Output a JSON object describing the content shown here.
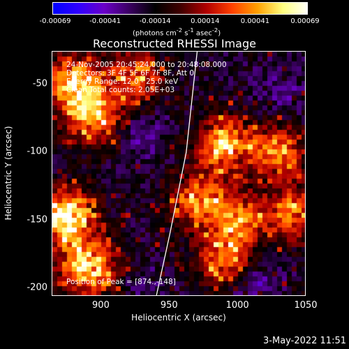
{
  "colorbar": {
    "ticks": [
      "-0.00069",
      "-0.00041",
      "-0.00014",
      "0.00014",
      "0.00041",
      "0.00069"
    ],
    "units_pre": "(photons cm",
    "units_sup1": "-2",
    "units_mid1": " s",
    "units_sup2": "-1",
    "units_mid2": " asec",
    "units_sup3": "-2",
    "units_post": ")",
    "colors": [
      "#0000ff",
      "#3000ff",
      "#6a00c8",
      "#3a0060",
      "#000000",
      "#400000",
      "#b00000",
      "#ff4000",
      "#ffa000",
      "#ffff80",
      "#ffffff"
    ]
  },
  "annotations": {
    "time_range": "24-Nov-2005 20:45:24.000 to 20:48:08.000",
    "detectors": "Detectors: 3F 4F 5F 6F 7F 8F, Att 0",
    "energy_range": "Energy Range: 12.0 - 25.0 keV",
    "clean_counts": "Clean     Total counts: 2.05E+03",
    "peak_position": "Position of Peak = [874.,-148]"
  },
  "chart_data": {
    "type": "heatmap",
    "title": "Reconstructed RHESSI Image",
    "xlabel": "Heliocentric X (arcsec)",
    "ylabel": "Heliocentric Y (arcsec)",
    "xlim": [
      864,
      1050
    ],
    "ylim": [
      -206,
      -26
    ],
    "xticks": [
      "900",
      "950",
      "1000",
      "1050"
    ],
    "yticks": [
      "-50",
      "-100",
      "-150",
      "-200"
    ],
    "xtick_values": [
      900,
      950,
      1000,
      1050
    ],
    "ytick_values": [
      -50,
      -100,
      -150,
      -200
    ],
    "clim": [
      -0.00069,
      0.00069
    ],
    "peak": [
      874,
      -148
    ],
    "bright_regions": [
      {
        "x": 880,
        "y": -50,
        "level": 0.8
      },
      {
        "x": 895,
        "y": -75,
        "level": 0.6
      },
      {
        "x": 925,
        "y": -45,
        "level": 0.5
      },
      {
        "x": 990,
        "y": -95,
        "level": 0.75
      },
      {
        "x": 1030,
        "y": -100,
        "level": 0.6
      },
      {
        "x": 970,
        "y": -135,
        "level": 0.55
      },
      {
        "x": 874,
        "y": -148,
        "level": 1.0
      },
      {
        "x": 890,
        "y": -185,
        "level": 0.85
      },
      {
        "x": 1000,
        "y": -150,
        "level": 0.55
      },
      {
        "x": 1040,
        "y": -145,
        "level": 0.5
      },
      {
        "x": 990,
        "y": -180,
        "level": 0.55
      }
    ],
    "dim_regions": [
      {
        "x": 930,
        "y": -85,
        "level": -0.5
      },
      {
        "x": 1030,
        "y": -55,
        "level": -0.45
      },
      {
        "x": 1010,
        "y": -195,
        "level": -0.55
      },
      {
        "x": 935,
        "y": -200,
        "level": -0.4
      }
    ],
    "limb_points": [
      [
        970,
        -26
      ],
      [
        962,
        -100
      ],
      [
        950,
        -160
      ],
      [
        940,
        -206
      ]
    ]
  },
  "timestamp": "3-May-2022 11:51"
}
